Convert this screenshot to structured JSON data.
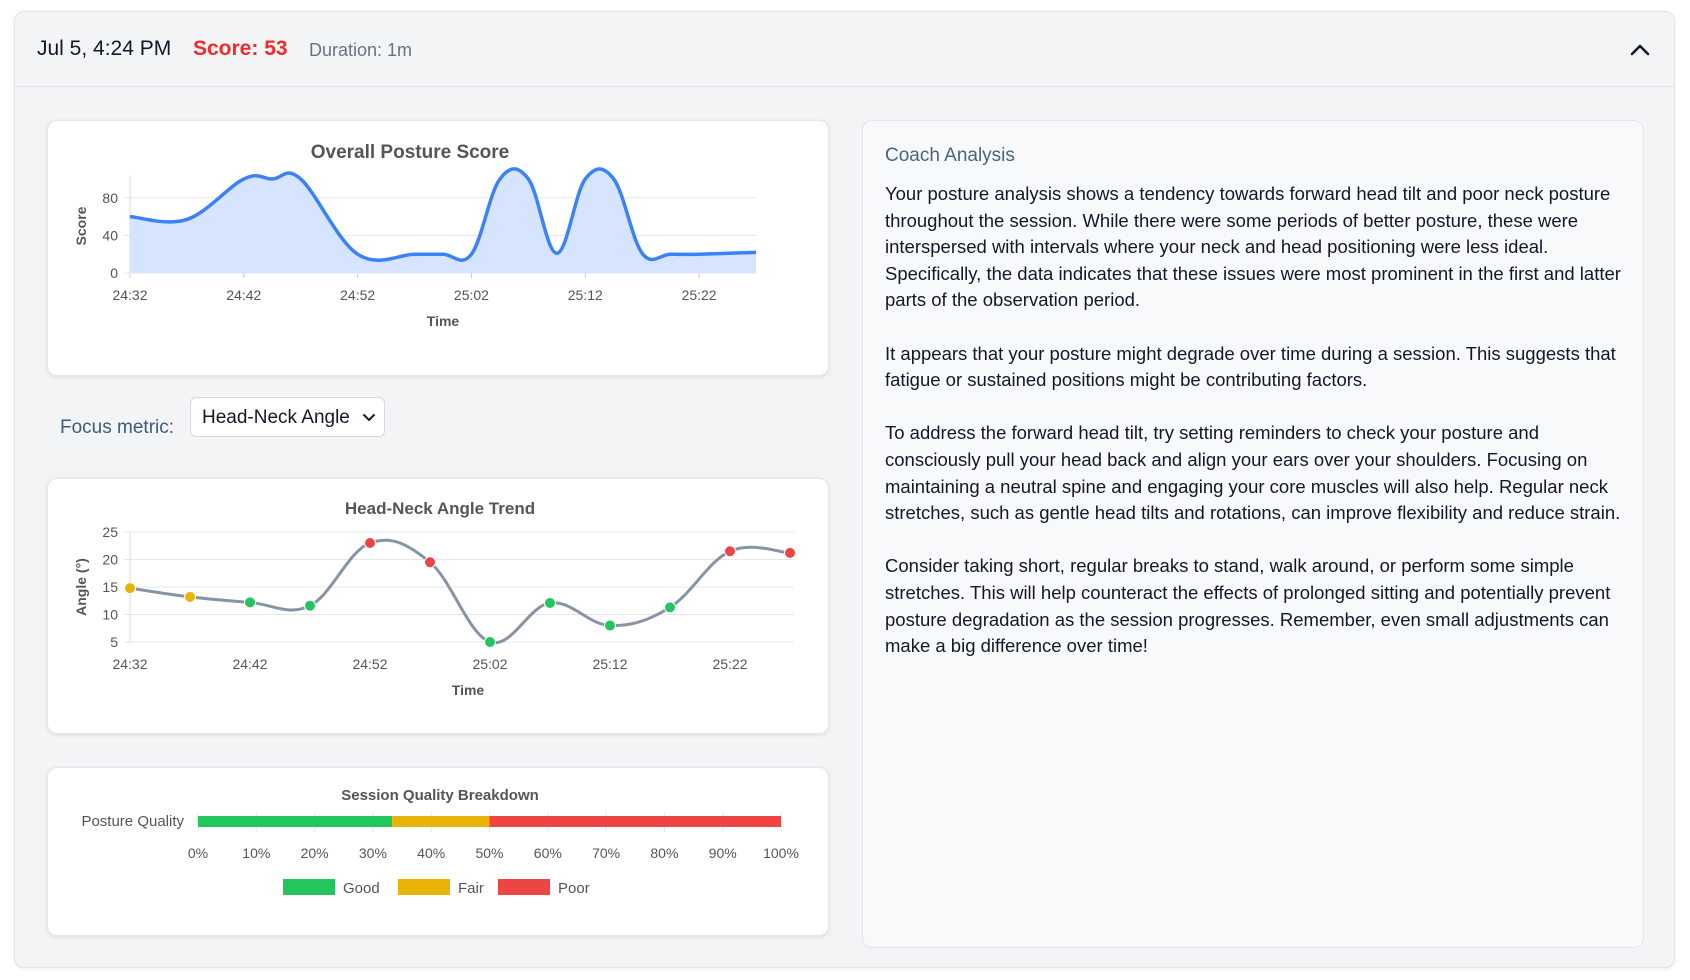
{
  "header": {
    "date": "Jul 5, 4:24 PM",
    "score": "Score: 53",
    "duration": "Duration: 1m",
    "collapse_icon": "chevron-up-icon"
  },
  "colors": {
    "score_red": "#ef2b2b",
    "line_blue": "#3b82f6",
    "fill_blue": "#d6e4ff",
    "good": "#22c55e",
    "fair": "#eab308",
    "poor": "#ef4444"
  },
  "focus": {
    "label": "Focus metric:",
    "selected": "Head-Neck Angle"
  },
  "coach": {
    "title": "Coach Analysis",
    "paragraphs": [
      "Your posture analysis shows a tendency towards forward head tilt and poor neck posture throughout the session.  While there were some periods of better posture, these were interspersed with intervals where your neck and head positioning were less ideal.  Specifically, the data indicates that these issues were most prominent in the first and latter parts of the observation period.",
      "It appears that your posture might degrade over time during a session.  This suggests that fatigue or sustained positions might be contributing factors.",
      "To address the forward head tilt, try setting reminders to check your posture and consciously pull your head back and align your ears over your shoulders.  Focusing on maintaining a neutral spine and engaging your core muscles will also help.  Regular neck stretches, such as gentle head tilts and rotations, can improve flexibility and reduce strain.",
      "Consider taking short, regular breaks to stand, walk around, or perform some simple stretches.  This will help counteract the effects of prolonged sitting and potentially prevent posture degradation as the session progresses.  Remember, even small adjustments can make a big difference over time!"
    ]
  },
  "chart_data": [
    {
      "type": "area",
      "title": "Overall Posture Score",
      "xlabel": "Time",
      "ylabel": "Score",
      "ylim": [
        0,
        100
      ],
      "yticks": [
        0,
        40,
        80
      ],
      "xticks": [
        "24:32",
        "24:42",
        "24:52",
        "25:02",
        "25:12",
        "25:22"
      ],
      "x": [
        0,
        2,
        4,
        5,
        6,
        8,
        10,
        11,
        12,
        13,
        14,
        15,
        16,
        17,
        18,
        19,
        20,
        22
      ],
      "values": [
        60,
        57,
        100,
        100,
        100,
        20,
        20,
        20,
        20,
        100,
        100,
        21,
        100,
        100,
        21,
        20,
        20,
        22
      ],
      "grid": true,
      "legend": "none"
    },
    {
      "type": "line",
      "title": "Head-Neck Angle Trend",
      "xlabel": "Time",
      "ylabel": "Angle (°)",
      "ylim": [
        5,
        25
      ],
      "yticks": [
        5,
        10,
        15,
        20,
        25
      ],
      "xticks": [
        "24:32",
        "24:42",
        "24:52",
        "25:02",
        "25:12",
        "25:22"
      ],
      "x": [
        0,
        5,
        10,
        15,
        20,
        25,
        30,
        35,
        40,
        45,
        50,
        55
      ],
      "values": [
        14.8,
        13.2,
        12.2,
        11.6,
        23.0,
        19.5,
        5.0,
        12.1,
        8.0,
        11.3,
        21.5,
        21.2
      ],
      "point_quality": [
        "fair",
        "fair",
        "good",
        "good",
        "poor",
        "poor",
        "good",
        "good",
        "good",
        "good",
        "poor",
        "poor"
      ],
      "grid": true,
      "legend": "none"
    },
    {
      "type": "bar",
      "orientation": "horizontal-stacked",
      "title": "Session Quality Breakdown",
      "categories": [
        "Posture Quality"
      ],
      "series": [
        {
          "name": "Good",
          "values": [
            33.3
          ]
        },
        {
          "name": "Fair",
          "values": [
            16.7
          ]
        },
        {
          "name": "Poor",
          "values": [
            50
          ]
        }
      ],
      "xlim": [
        0,
        100
      ],
      "xticks": [
        "0%",
        "10%",
        "20%",
        "30%",
        "40%",
        "50%",
        "60%",
        "70%",
        "80%",
        "90%",
        "100%"
      ],
      "legend": "bottom"
    }
  ]
}
